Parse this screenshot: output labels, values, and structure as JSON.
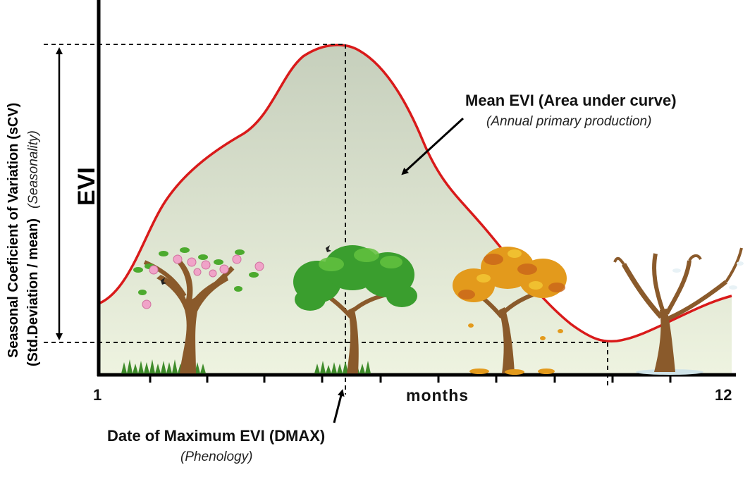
{
  "y_axis": {
    "label": "EVI",
    "arrow_label_line1": "Seasonal Coeficient of Variation (sCV)",
    "arrow_label_line2": "(Std.Deviation / mean)",
    "arrow_label_note": "(Seasonality)"
  },
  "x_axis": {
    "label": "months",
    "start": "1",
    "end": "12"
  },
  "annotations": {
    "area_title": "Mean EVI (Area under curve)",
    "area_subtitle": "(Annual primary production)",
    "peak_title": "Date of Maximum EVI (DMAX)",
    "peak_subtitle": "(Phenology)"
  },
  "colors": {
    "curve": "#d91a1a",
    "fill_top": "#c9d2c0",
    "fill_bottom": "#eef3e2",
    "axis": "#000000"
  },
  "trees": [
    {
      "name": "spring-tree-icon",
      "season": "spring"
    },
    {
      "name": "summer-tree-icon",
      "season": "summer"
    },
    {
      "name": "autumn-tree-icon",
      "season": "autumn"
    },
    {
      "name": "winter-tree-icon",
      "season": "winter"
    }
  ]
}
